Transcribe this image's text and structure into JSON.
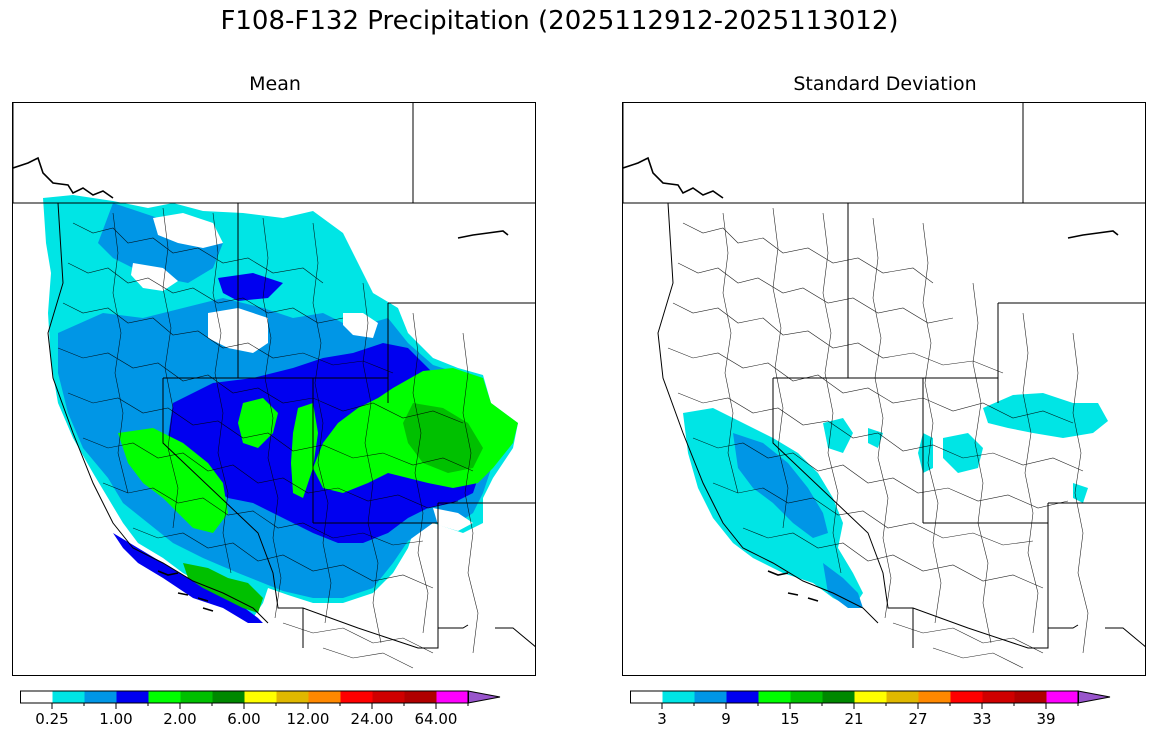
{
  "figure": {
    "title": "F108-F132 Precipitation (2025112912-2025113012)"
  },
  "panels": [
    {
      "title": "Mean",
      "colorbar": {
        "colors": [
          "#ffffff",
          "#00e5e5",
          "#0096e6",
          "#0000f0",
          "#00ff00",
          "#00c000",
          "#008800",
          "#ffff00",
          "#e0b800",
          "#ff8800",
          "#ff0000",
          "#d00000",
          "#b00000",
          "#ff00ff",
          "#9955cc"
        ],
        "extend": "max",
        "tick_labels": [
          "0.25",
          "1.00",
          "2.00",
          "6.00",
          "12.00",
          "24.00",
          "64.00"
        ]
      }
    },
    {
      "title": "Standard Deviation",
      "colorbar": {
        "colors": [
          "#ffffff",
          "#00e5e5",
          "#0096e6",
          "#0000f0",
          "#00ff00",
          "#00c000",
          "#008800",
          "#ffff00",
          "#e0b800",
          "#ff8800",
          "#ff0000",
          "#d00000",
          "#b00000",
          "#ff00ff",
          "#9955cc"
        ],
        "extend": "max",
        "tick_labels": [
          "3",
          "9",
          "15",
          "21",
          "27",
          "33",
          "39"
        ]
      }
    }
  ]
}
